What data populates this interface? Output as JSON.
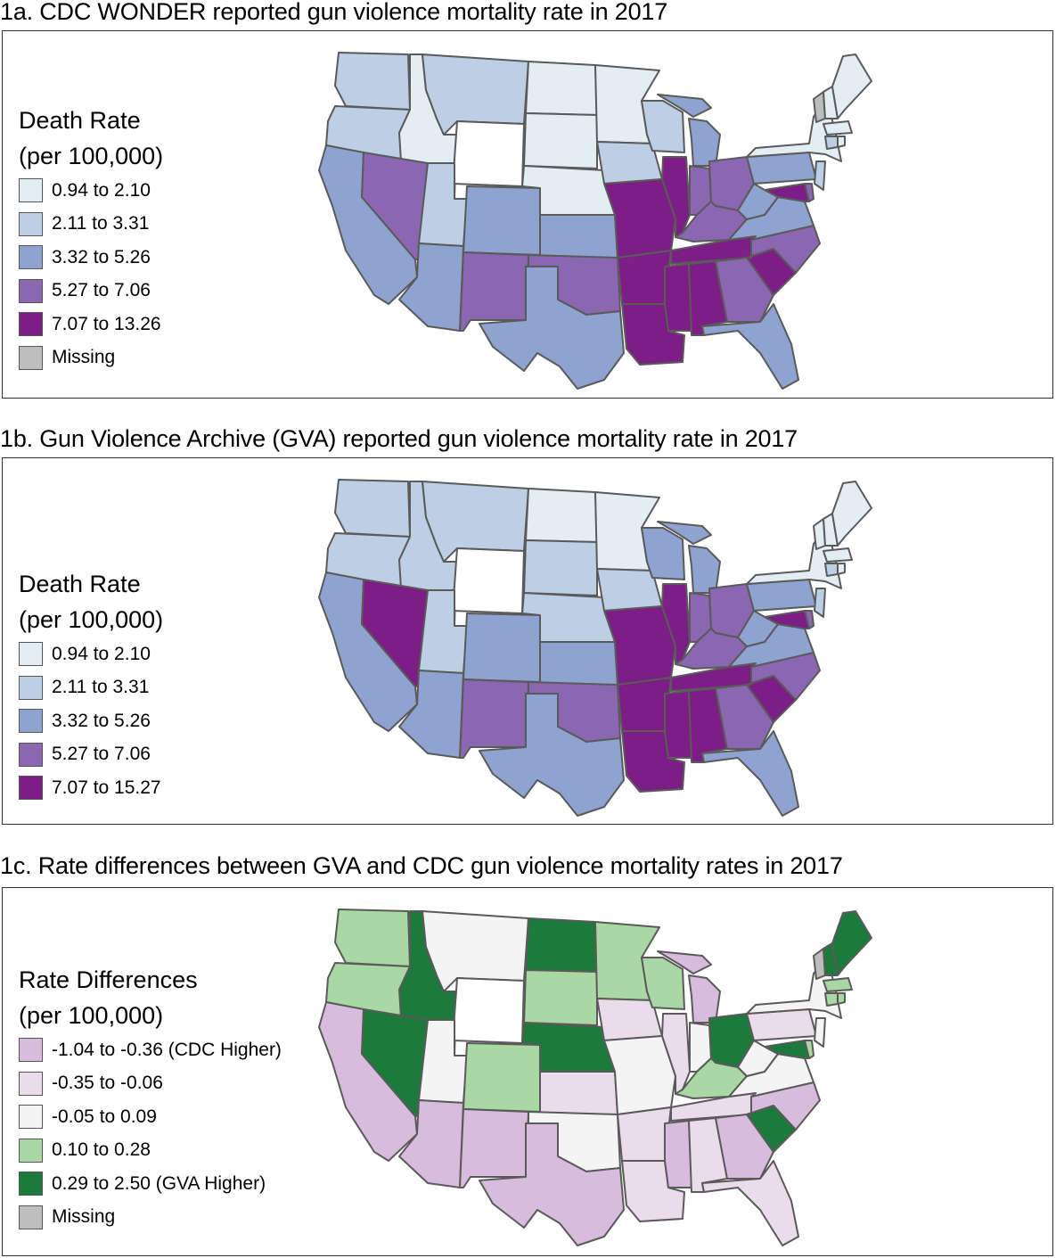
{
  "colors": {
    "purple_1": "#e3eef3",
    "purple_2": "#bccfe4",
    "purple_3": "#8fa3d1",
    "purple_4": "#8b66b1",
    "purple_5": "#7d1e86",
    "missing": "#bdbdbd",
    "diff_1": "#d8bcdd",
    "diff_2": "#ebdcec",
    "diff_3": "#f4f4f4",
    "diff_4": "#a9d8a5",
    "diff_5": "#1b7a3c",
    "no_data": "#ffffff"
  },
  "panels": [
    {
      "title": "1a. CDC WONDER reported gun violence mortality rate in 2017",
      "legend_title_1": "Death Rate",
      "legend_title_2": "(per 100,000)",
      "legend": [
        {
          "label": "0.94 to 2.10",
          "color": "#e3eef3"
        },
        {
          "label": "2.11 to 3.31",
          "color": "#bccfe4"
        },
        {
          "label": "3.32 to 5.26",
          "color": "#8fa3d1"
        },
        {
          "label": "5.27 to 7.06",
          "color": "#8b66b1"
        },
        {
          "label": "7.07 to 13.26",
          "color": "#7d1e86"
        },
        {
          "label": "Missing",
          "color": "#bdbdbd"
        }
      ]
    },
    {
      "title": "1b. Gun Violence Archive (GVA) reported gun violence mortality rate in 2017",
      "legend_title_1": "Death Rate",
      "legend_title_2": "(per 100,000)",
      "legend": [
        {
          "label": "0.94 to 2.10",
          "color": "#e3eef3"
        },
        {
          "label": "2.11 to 3.31",
          "color": "#bccfe4"
        },
        {
          "label": "3.32 to 5.26",
          "color": "#8fa3d1"
        },
        {
          "label": "5.27 to 7.06",
          "color": "#8b66b1"
        },
        {
          "label": "7.07 to 15.27",
          "color": "#7d1e86"
        }
      ]
    },
    {
      "title": "1c. Rate differences between GVA and CDC gun violence mortality rates in 2017",
      "legend_title_1": "Rate Differences",
      "legend_title_2": "(per 100,000)",
      "legend": [
        {
          "label": "-1.04 to -0.36 (CDC Higher)",
          "color": "#d8bcdd"
        },
        {
          "label": "-0.35 to -0.06",
          "color": "#ebdcec"
        },
        {
          "label": "-0.05 to 0.09",
          "color": "#f4f4f4"
        },
        {
          "label": "0.10 to 0.28",
          "color": "#a9d8a5"
        },
        {
          "label": "0.29 to 2.50  (GVA Higher)",
          "color": "#1b7a3c"
        },
        {
          "label": "Missing",
          "color": "#bdbdbd"
        }
      ]
    }
  ]
}
